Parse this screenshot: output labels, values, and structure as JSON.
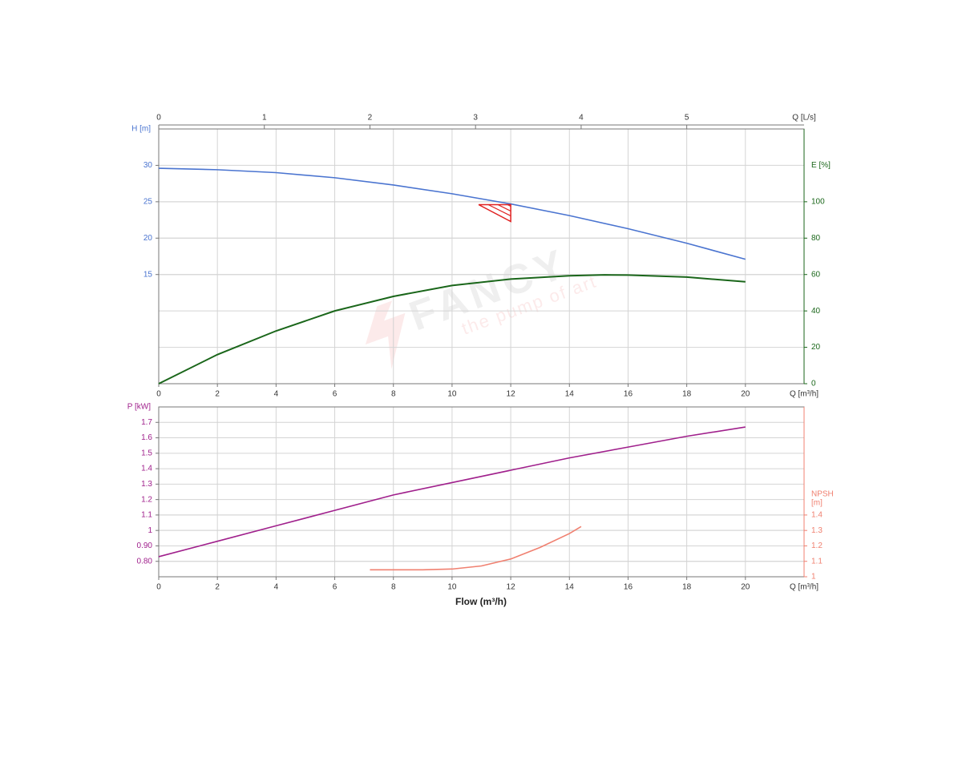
{
  "chart_data": [
    {
      "type": "line",
      "xlabel": "Q [m³/h]",
      "ylabel": "H [m]",
      "y2label": [
        "E [%]"
      ],
      "x2label": "Q [L/s]",
      "xlim": [
        0,
        22
      ],
      "xticks": [
        0,
        2,
        4,
        6,
        8,
        10,
        12,
        14,
        16,
        18,
        20
      ],
      "x2lim": [
        0,
        6.111
      ],
      "x2ticks": [
        0,
        1,
        2,
        3,
        4,
        5
      ],
      "ylim": [
        0,
        35
      ],
      "yticks": [
        15,
        20,
        25,
        30
      ],
      "y2lim": [
        0,
        140
      ],
      "y2ticks": [
        0,
        20,
        40,
        60,
        80,
        100
      ],
      "grid": true,
      "series": [
        {
          "color": "#4a74d0",
          "axis": "y",
          "x": [
            0,
            2,
            4,
            6,
            8,
            10,
            12,
            14,
            16,
            18,
            20
          ],
          "values": [
            29.6,
            29.4,
            29.0,
            28.3,
            27.3,
            26.1,
            24.7,
            23.1,
            21.3,
            19.3,
            17.1
          ]
        },
        {
          "color": "#1a661a",
          "axis": "y2",
          "x": [
            0,
            2,
            4,
            6,
            8,
            10,
            12,
            14,
            15.2,
            16,
            18,
            20
          ],
          "values": [
            0,
            16,
            29,
            40,
            48,
            54,
            57.5,
            59.3,
            59.8,
            59.7,
            58.6,
            56
          ]
        }
      ],
      "duty_point": {
        "x": 12,
        "y": 24.6,
        "color": "#e02020"
      },
      "watermark": "FANCY",
      "watermark_tagline": "the pump of art"
    },
    {
      "type": "line",
      "xlabel": "Q [m³/h]",
      "ylabel": "P [kW]",
      "y2label": [
        "NPSH",
        "[m]"
      ],
      "xaxis_title": "Flow (m³/h)",
      "xlim": [
        0,
        22
      ],
      "xticks": [
        0,
        2,
        4,
        6,
        8,
        10,
        12,
        14,
        16,
        18,
        20
      ],
      "ylim": [
        0.7,
        1.8
      ],
      "yticks": [
        {
          "value": 0.8,
          "label": "0.80"
        },
        {
          "value": 0.9,
          "label": "0.90"
        },
        1,
        1.1,
        1.2,
        1.3,
        1.4,
        1.5,
        1.6,
        1.7
      ],
      "y2lim": [
        1,
        2.1
      ],
      "y2ticks": [
        1,
        1.1,
        1.2,
        1.3,
        1.4
      ],
      "grid": true,
      "series": [
        {
          "color": "#a0208c",
          "axis": "y",
          "x": [
            0,
            2,
            4,
            6,
            8,
            10,
            12,
            14,
            16,
            18,
            20
          ],
          "values": [
            0.83,
            0.93,
            1.03,
            1.13,
            1.23,
            1.31,
            1.39,
            1.47,
            1.54,
            1.61,
            1.67
          ]
        },
        {
          "color": "#f08070",
          "axis": "y2",
          "x": [
            7.2,
            8,
            9,
            10,
            11,
            12,
            13,
            14,
            14.4
          ],
          "values": [
            1.045,
            1.045,
            1.045,
            1.05,
            1.07,
            1.115,
            1.19,
            1.28,
            1.325
          ]
        }
      ]
    }
  ]
}
